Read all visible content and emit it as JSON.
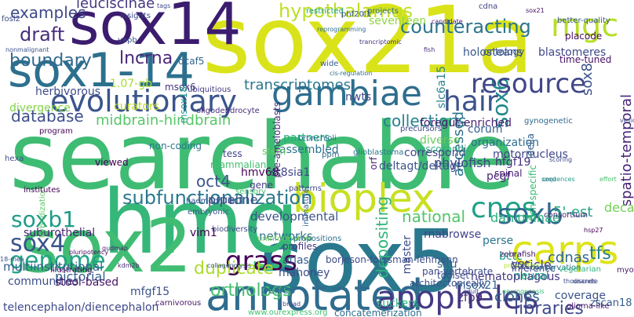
{
  "words": [
    {
      "text": "searchable",
      "color": "#3fbc73"
    },
    {
      "text": "sox21a",
      "color": "#dae319"
    },
    {
      "text": "sox5",
      "color": "#2a788e"
    },
    {
      "text": "hmg",
      "color": "#35b779"
    },
    {
      "text": "sox14",
      "color": "#3b1c6e"
    },
    {
      "text": "sox1-14",
      "color": "#2d708e"
    },
    {
      "text": "sox2",
      "color": "#40bd72"
    },
    {
      "text": "annotated",
      "color": "#2f6c8e"
    },
    {
      "text": "bioplex",
      "color": "#c8e020"
    },
    {
      "text": "evolutionary",
      "color": "#3a548c"
    },
    {
      "text": "anopheles",
      "color": "#443a83"
    },
    {
      "text": "carps",
      "color": "#dde318"
    },
    {
      "text": "mgc",
      "color": "#b8de29"
    },
    {
      "text": "gambiae",
      "color": "#2e6e8e"
    },
    {
      "text": "sox6",
      "color": "#238a8d"
    },
    {
      "text": "hair",
      "color": "#3b528b"
    },
    {
      "text": "resource",
      "color": "#404688"
    },
    {
      "text": "grass",
      "color": "#440154"
    },
    {
      "text": "cnes",
      "color": "#1fa187"
    },
    {
      "text": "soxb",
      "color": "#31688e"
    },
    {
      "text": "sox4",
      "color": "#39558c"
    },
    {
      "text": "genome",
      "color": "#20a386"
    },
    {
      "text": "soxb1",
      "color": "#1e9c89"
    },
    {
      "text": "hypothalamus",
      "color": "#bddf26"
    },
    {
      "text": "counteracting",
      "color": "#2b758e"
    },
    {
      "text": "boundary",
      "color": "#30698e"
    },
    {
      "text": "lncrna",
      "color": "#482878"
    },
    {
      "text": "draft",
      "color": "#472d7b"
    },
    {
      "text": "examples",
      "color": "#3e4989"
    },
    {
      "text": "leuciscinae",
      "color": "#453781"
    },
    {
      "text": "database",
      "color": "#3c4f8a"
    },
    {
      "text": "midbrain-hindbrain",
      "color": "#56c667"
    },
    {
      "text": "transcriptomes",
      "color": "#2a778e"
    },
    {
      "text": "collections",
      "color": "#26828e"
    },
    {
      "text": "accessed",
      "color": "#2c728e"
    },
    {
      "text": "spatio-temporal",
      "color": "#482576"
    },
    {
      "text": "depositing",
      "color": "#2fb47c"
    },
    {
      "text": "subfunctionalization",
      "color": "#2a788e"
    },
    {
      "text": "national",
      "color": "#52c569"
    },
    {
      "text": "oct4",
      "color": "#39568c"
    },
    {
      "text": "st8sia1",
      "color": "#414487"
    },
    {
      "text": "pipeline",
      "color": "#3d4e8a"
    },
    {
      "text": "duplicate",
      "color": "#addc30"
    },
    {
      "text": "orthologs",
      "color": "#46c06f"
    },
    {
      "text": "developmental",
      "color": "#3b528b"
    },
    {
      "text": "multiinstitutional",
      "color": "#355e8d"
    },
    {
      "text": "suburothelial",
      "color": "#482475"
    },
    {
      "text": "tfs",
      "color": "#287d8e"
    },
    {
      "text": "cdnas",
      "color": "#31678e"
    },
    {
      "text": "5'-est",
      "color": "#22a884"
    },
    {
      "text": "mahoney",
      "color": "#3e4a89"
    },
    {
      "text": "atlas",
      "color": "#365c8d"
    },
    {
      "text": "profiles",
      "color": "#453882"
    },
    {
      "text": "pcnes",
      "color": "#2c728e"
    },
    {
      "text": "zfp9",
      "color": "#472a7a"
    },
    {
      "text": "cuticle",
      "color": "#433e85"
    },
    {
      "text": "clones",
      "color": "#33638d"
    },
    {
      "text": "libraries",
      "color": "#3e4989"
    },
    {
      "text": "msox21",
      "color": "#34618d"
    },
    {
      "text": "hematophagous",
      "color": "#453781"
    },
    {
      "text": "deca",
      "color": "#73d056"
    },
    {
      "text": "rnabrowse",
      "color": "#404588"
    },
    {
      "text": "danioninae",
      "color": "#2ab07f"
    },
    {
      "text": "bctc",
      "color": "#1f9e89"
    },
    {
      "text": "vim1",
      "color": "#440154"
    },
    {
      "text": "hmv68",
      "color": "#450559"
    },
    {
      "text": "corum",
      "color": "#34608d"
    },
    {
      "text": "organization",
      "color": "#2e6f8e"
    },
    {
      "text": "motornucleus",
      "color": "#404688"
    },
    {
      "text": "foregut-enriched",
      "color": "#481f70"
    },
    {
      "text": "phylofish",
      "color": "#3f4788"
    },
    {
      "text": "diverse",
      "color": "#65cb5e"
    },
    {
      "text": "nwts",
      "color": "#3e4c8a"
    },
    {
      "text": "partners",
      "color": "#26ad81"
    },
    {
      "text": "assembled",
      "color": "#2d718e"
    },
    {
      "text": "orf",
      "color": "#482173"
    },
    {
      "text": "tess",
      "color": "#404688"
    },
    {
      "text": "mammalian",
      "color": "#44bf70"
    },
    {
      "text": "stem",
      "color": "#67cc5c"
    },
    {
      "text": "viewed",
      "color": "#440154"
    },
    {
      "text": "non-coding",
      "color": "#2a788e"
    },
    {
      "text": "msox6",
      "color": "#46337e"
    },
    {
      "text": "1.07-gb",
      "color": "#a8db34"
    },
    {
      "text": "herbivorous",
      "color": "#3e4c8a"
    },
    {
      "text": "divergence",
      "color": "#84d44b"
    },
    {
      "text": "msox18",
      "color": "#1f988b"
    },
    {
      "text": "dcaf5",
      "color": "#32658e"
    },
    {
      "text": "slc6a15",
      "color": "#26828e"
    },
    {
      "text": "seventeen",
      "color": "#90d743"
    },
    {
      "text": "holosteans",
      "color": "#38588c"
    },
    {
      "text": "ontology",
      "color": "#3a538b"
    },
    {
      "text": "blastomeres",
      "color": "#3e4989"
    },
    {
      "text": "time-tuned",
      "color": "#471063"
    },
    {
      "text": "sox8",
      "color": "#3b528b"
    },
    {
      "text": "placode",
      "color": "#460a5d"
    },
    {
      "text": "pre-ameloblasts",
      "color": "#472c7a"
    },
    {
      "text": "ubiquitious",
      "color": "#443983"
    },
    {
      "text": "curators",
      "color": "#bade28"
    },
    {
      "text": "wide",
      "color": "#365c8d"
    },
    {
      "text": "projects",
      "color": "#2f6c8e"
    },
    {
      "text": "restricted",
      "color": "#1fa088"
    },
    {
      "text": "oligodendrocyte",
      "color": "#472f7d"
    },
    {
      "text": "gene",
      "color": "#433e85"
    },
    {
      "text": "fish-specific",
      "color": "#3aba76"
    },
    {
      "text": "spinal",
      "color": "#482071"
    },
    {
      "text": "idella",
      "color": "#34608d"
    },
    {
      "text": "hfgf19",
      "color": "#46307e"
    },
    {
      "text": "pcgf",
      "color": "#482677"
    },
    {
      "text": "communities",
      "color": "#3c4f8a"
    },
    {
      "text": "pictorial",
      "color": "#33628d"
    },
    {
      "text": "stool-based",
      "color": "#481467"
    },
    {
      "text": "telencephalon/diencephalon",
      "color": "#3f4889"
    },
    {
      "text": "mfgf15",
      "color": "#3b528b"
    },
    {
      "text": "carnivorous",
      "color": "#481668"
    },
    {
      "text": "networks",
      "color": "#2c738e"
    },
    {
      "text": "borjeson-forssman-lehmann",
      "color": "#3d4d8a"
    },
    {
      "text": "concatemerization",
      "color": "#2e6e8e"
    },
    {
      "text": "www.ourexpress.org",
      "color": "#46c06f"
    },
    {
      "text": "suckers",
      "color": "#29af7f"
    },
    {
      "text": "zscan18",
      "color": "#355f8d"
    },
    {
      "text": "coverage",
      "color": "#3b528b"
    },
    {
      "text": "glioma-like",
      "color": "#471365"
    },
    {
      "text": "thousands",
      "color": "#3e4a89"
    },
    {
      "text": "progenitors",
      "color": "#b0dd2f"
    },
    {
      "text": "neurogenesis",
      "color": "#37b878"
    },
    {
      "text": "master",
      "color": "#3e4c8a"
    },
    {
      "text": "situ",
      "color": "#33628d"
    },
    {
      "text": "toolset",
      "color": "#3e4989"
    },
    {
      "text": "perse",
      "color": "#2c738e"
    },
    {
      "text": "inference",
      "color": "#3e4a89"
    },
    {
      "text": "vsc",
      "color": "#3f4889"
    },
    {
      "text": "neural",
      "color": "#1f9f88"
    },
    {
      "text": "conservation",
      "color": "#2a788e"
    },
    {
      "text": "vegetarian",
      "color": "#2db27d"
    },
    {
      "text": "zebrafish",
      "color": "#48186a"
    },
    {
      "text": "pan-vertebrate",
      "color": "#3e4a89"
    },
    {
      "text": "architectonically",
      "color": "#3b518b"
    },
    {
      "text": "escosanoic",
      "color": "#2db27d"
    },
    {
      "text": "deltagt/deltagt",
      "color": "#3b528b"
    },
    {
      "text": "correspond",
      "color": "#3e4989"
    },
    {
      "text": "patterns",
      "color": "#3f4788"
    },
    {
      "text": "sensory",
      "color": "#48c16e"
    },
    {
      "text": "immature",
      "color": "#32648e"
    },
    {
      "text": "biodiversity",
      "color": "#3e4989"
    },
    {
      "text": "uninformative",
      "color": "#73d056"
    },
    {
      "text": "propositions",
      "color": "#2e6f8e"
    },
    {
      "text": "embryonic",
      "color": "#39568c"
    },
    {
      "text": "haemophilia",
      "color": "#3b528b"
    },
    {
      "text": "hybridization",
      "color": "#5ec962"
    },
    {
      "text": "institutes",
      "color": "#440154"
    },
    {
      "text": "program",
      "color": "#450457"
    },
    {
      "text": "hexa",
      "color": "#3d4d8a"
    },
    {
      "text": "illustrating",
      "color": "#450559"
    },
    {
      "text": "pluripotency",
      "color": "#470e61"
    },
    {
      "text": "18-mea",
      "color": "#3d4e8a"
    },
    {
      "text": "gudmap",
      "color": "#481f70"
    },
    {
      "text": "kdm2b",
      "color": "#482374"
    },
    {
      "text": "collagenolysis",
      "color": "#3b528b"
    },
    {
      "text": "broad",
      "color": "#404588"
    },
    {
      "text": "vapb",
      "color": "#3b528b"
    },
    {
      "text": "insights",
      "color": "#3e4989"
    },
    {
      "text": "tags",
      "color": "#3e4989"
    },
    {
      "text": "phf20l1",
      "color": "#3b528b"
    },
    {
      "text": "candidate",
      "color": "#481b6d"
    },
    {
      "text": "cdna",
      "color": "#404688"
    },
    {
      "text": "better-quality",
      "color": "#38598c"
    },
    {
      "text": "sox21",
      "color": "#471063"
    },
    {
      "text": "cord",
      "color": "#306a8e"
    },
    {
      "text": "effort",
      "color": "#4ac16d"
    },
    {
      "text": "hsp27",
      "color": "#440154"
    },
    {
      "text": "myo6",
      "color": "#481a6c"
    },
    {
      "text": "adult",
      "color": "#3f4889"
    },
    {
      "text": "discrete",
      "color": "#3e4989"
    },
    {
      "text": "consortium",
      "color": "#481f70"
    },
    {
      "text": "fosl2",
      "color": "#3e4a89"
    },
    {
      "text": "bronchioli",
      "color": "#2d718e"
    },
    {
      "text": "vesical",
      "color": "#3b528b"
    },
    {
      "text": "sequences",
      "color": "#1fa088"
    },
    {
      "text": "gynogenetic",
      "color": "#30698e"
    },
    {
      "text": "precursors",
      "color": "#3e4989"
    },
    {
      "text": "ppm",
      "color": "#2f6b8e"
    },
    {
      "text": "glioblastoma",
      "color": "#2b758e"
    },
    {
      "text": "nonmalignant",
      "color": "#3b528b"
    },
    {
      "text": "cis-regulation",
      "color": "#2e6e8e"
    },
    {
      "text": "trancriptomic",
      "color": "#46327e"
    },
    {
      "text": "reprogramming",
      "color": "#2e6f8e"
    },
    {
      "text": "scoring",
      "color": "#3e4989"
    },
    {
      "text": "fish",
      "color": "#472f7d"
    }
  ]
}
